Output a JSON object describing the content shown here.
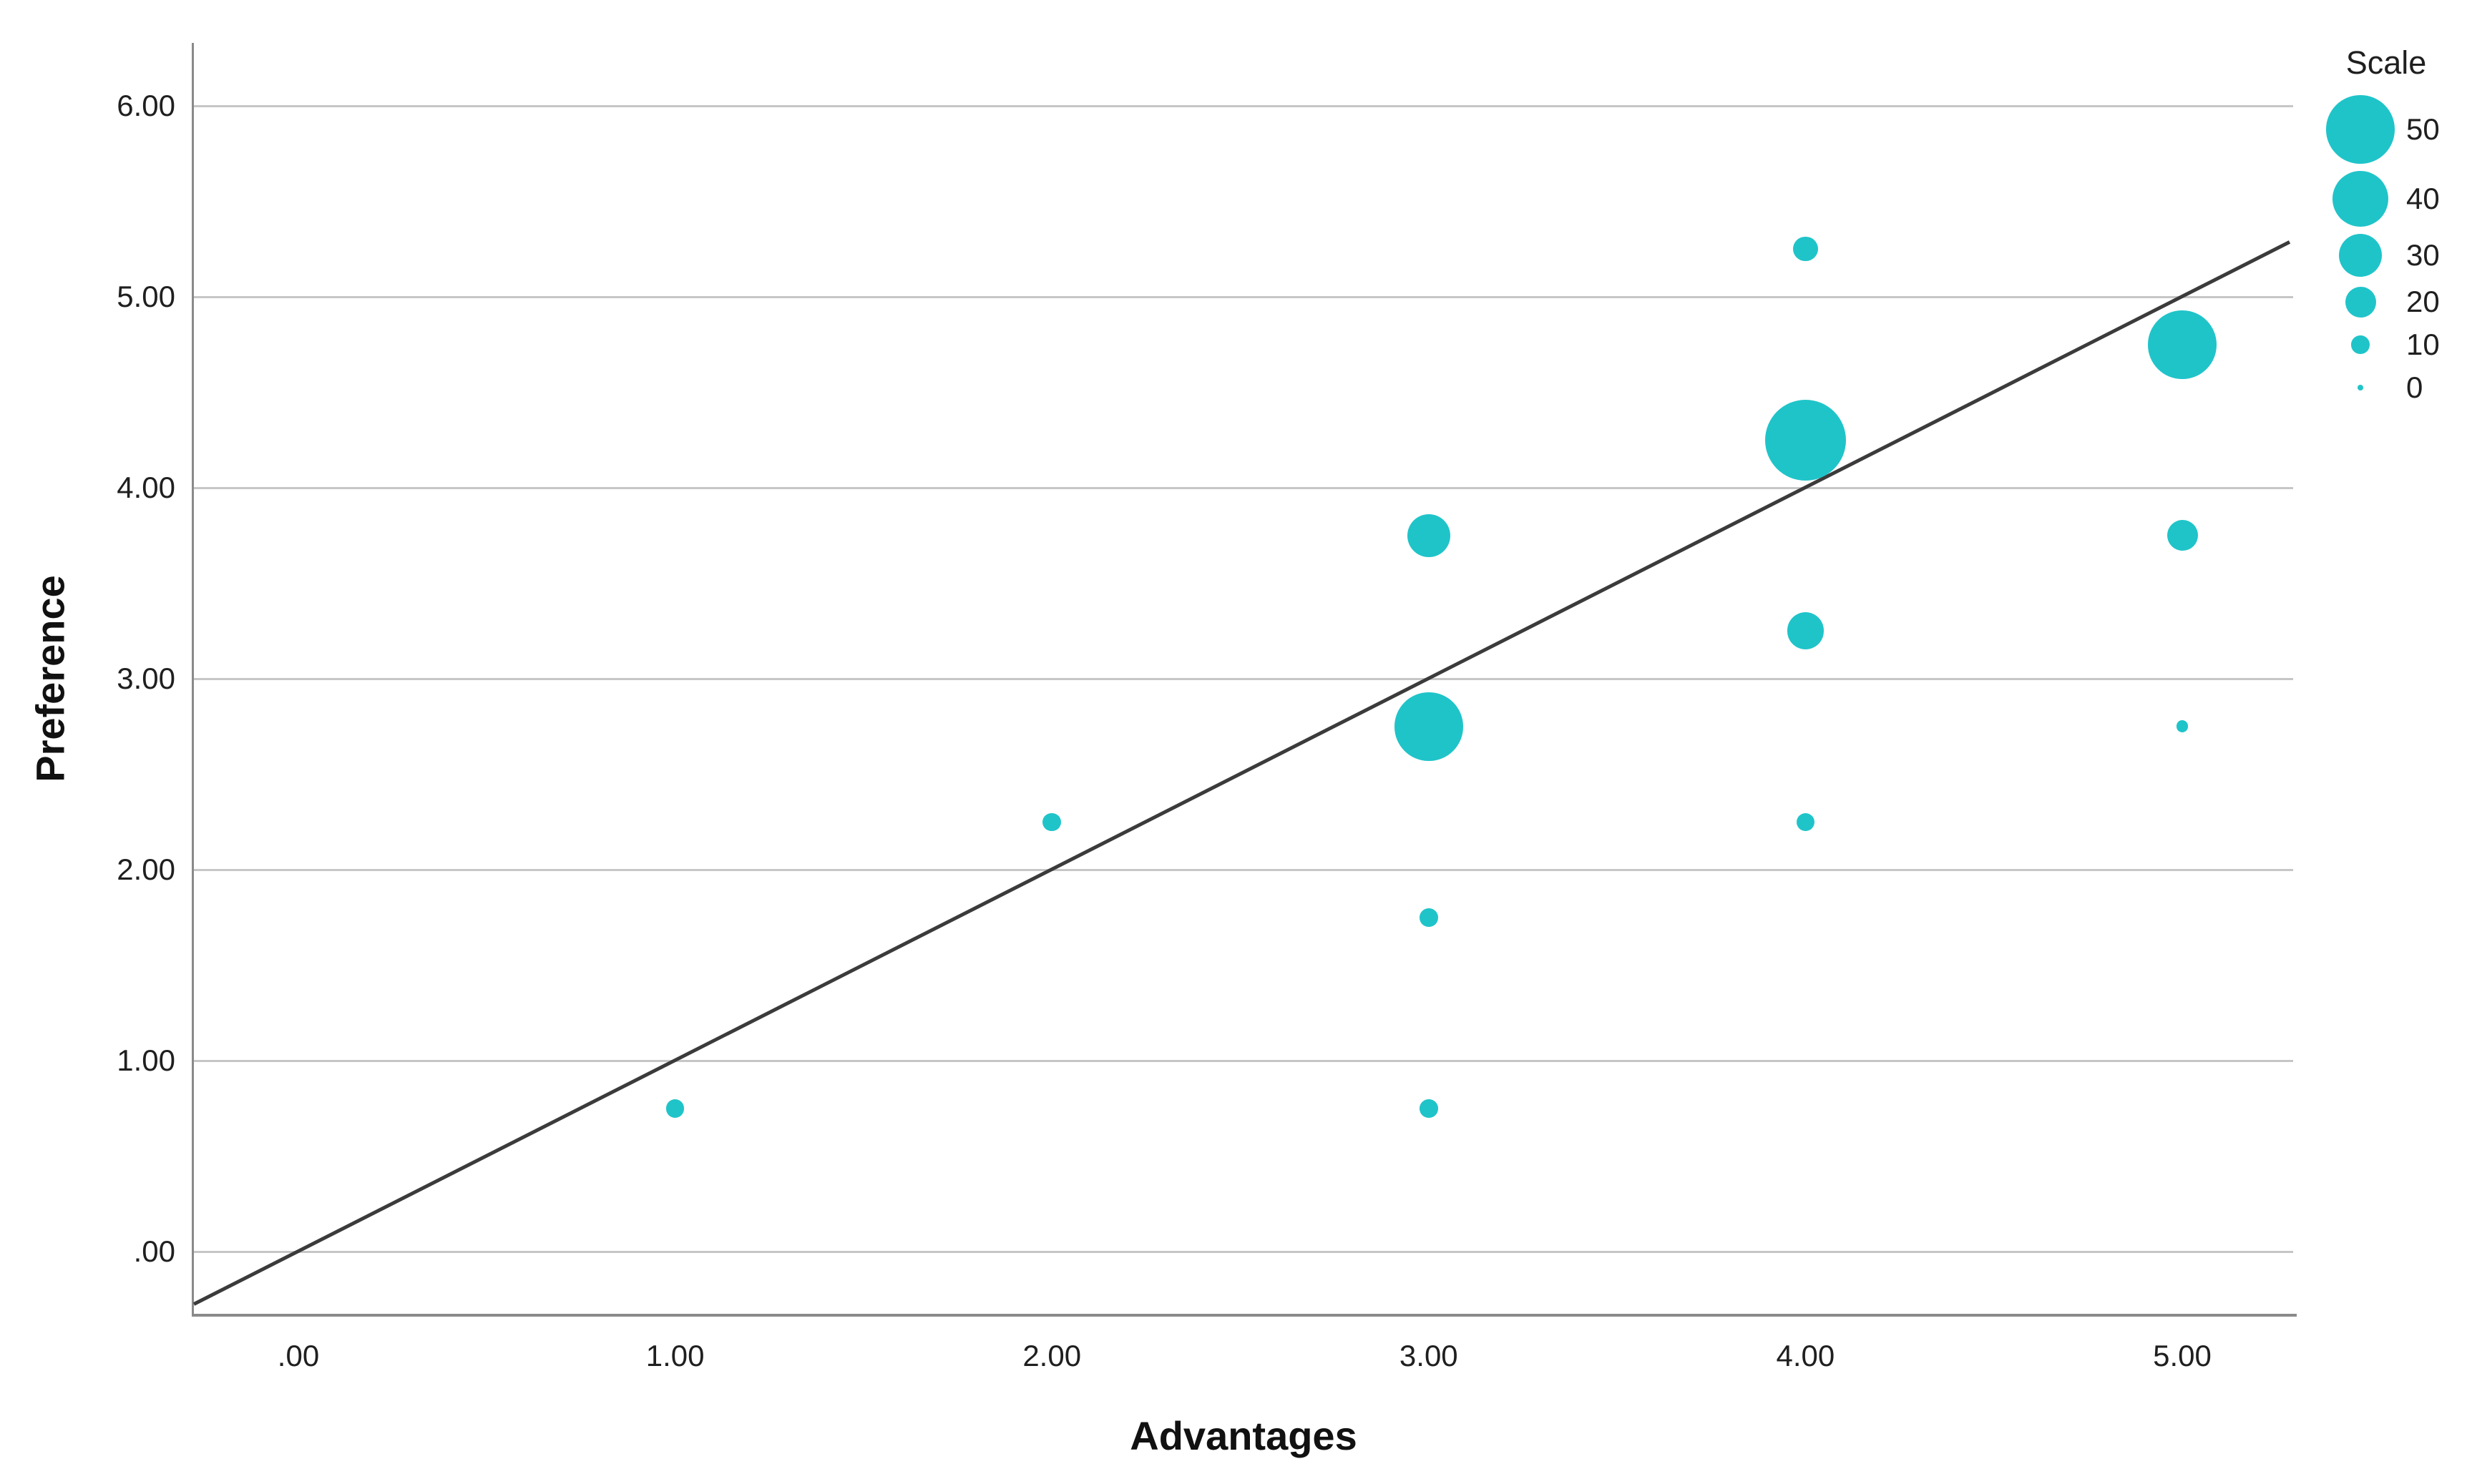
{
  "chart_data": {
    "type": "scatter",
    "subtype": "bubble",
    "title": "",
    "xlabel": "Advantages",
    "ylabel": "Preference",
    "xlim": [
      -0.28,
      5.29
    ],
    "ylim": [
      -0.33,
      6.33
    ],
    "grid": "horizontal-only",
    "xticks": {
      "values": [
        0,
        1,
        2,
        3,
        4,
        5
      ],
      "labels": [
        ".00",
        "1.00",
        "2.00",
        "3.00",
        "4.00",
        "5.00"
      ]
    },
    "yticks": {
      "values": [
        0,
        1,
        2,
        3,
        4,
        5,
        6
      ],
      "labels": [
        ".00",
        "1.00",
        "2.00",
        "3.00",
        "4.00",
        "5.00",
        "6.00"
      ]
    },
    "points": [
      {
        "x": 1,
        "y": 0.75,
        "scale": 10
      },
      {
        "x": 2,
        "y": 2.25,
        "scale": 10
      },
      {
        "x": 3,
        "y": 0.75,
        "scale": 10
      },
      {
        "x": 3,
        "y": 1.75,
        "scale": 10
      },
      {
        "x": 3,
        "y": 2.75,
        "scale": 50
      },
      {
        "x": 3,
        "y": 3.75,
        "scale": 30
      },
      {
        "x": 4,
        "y": 2.25,
        "scale": 10
      },
      {
        "x": 4,
        "y": 3.25,
        "scale": 25
      },
      {
        "x": 4,
        "y": 4.25,
        "scale": 60
      },
      {
        "x": 4,
        "y": 5.25,
        "scale": 15
      },
      {
        "x": 5,
        "y": 2.75,
        "scale": 5
      },
      {
        "x": 5,
        "y": 3.75,
        "scale": 20
      },
      {
        "x": 5,
        "y": 4.75,
        "scale": 50
      }
    ],
    "identity_line": {
      "x1": -0.277,
      "y1": -0.277,
      "x2": 5.285,
      "y2": 5.285,
      "description": "y = x reference line"
    },
    "legend": {
      "title": "Scale",
      "position": "top-right",
      "items": [
        {
          "label": "50",
          "value": 50
        },
        {
          "label": "40",
          "value": 40
        },
        {
          "label": "30",
          "value": 30
        },
        {
          "label": "20",
          "value": 20
        },
        {
          "label": "10",
          "value": 10
        },
        {
          "label": "0",
          "value": 0
        }
      ]
    },
    "size_rule": "bubble diameter px = 8 + 1.75 * scale",
    "colors": {
      "bubble": "#1fc4c9",
      "line": "#3b3b3b",
      "gridline": "#c6c6c6",
      "axis": "#8a8a8a",
      "text": "#1f1f1f"
    }
  }
}
